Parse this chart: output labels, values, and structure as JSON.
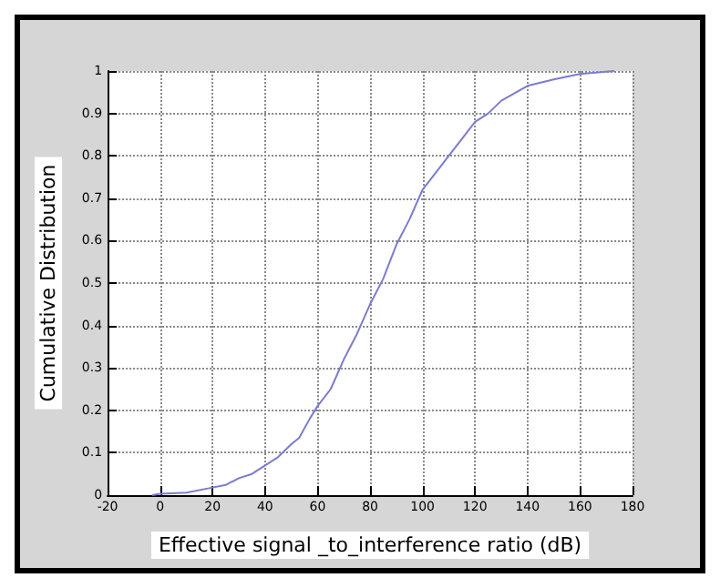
{
  "chart_data": {
    "type": "line",
    "xlabel": "Effective signal _to_interference ratio (dB)",
    "ylabel": "Cumulative Distribution",
    "x": [
      -3,
      0,
      10,
      20,
      25,
      30,
      35,
      40,
      45,
      50,
      53,
      57,
      60,
      65,
      70,
      75,
      80,
      85,
      90,
      95,
      100,
      105,
      110,
      115,
      120,
      125,
      130,
      140,
      150,
      160,
      173
    ],
    "series": [
      {
        "color": "#7b7bd0",
        "values": [
          0,
          0.003,
          0.006,
          0.018,
          0.024,
          0.04,
          0.05,
          0.07,
          0.09,
          0.12,
          0.135,
          0.18,
          0.21,
          0.25,
          0.32,
          0.38,
          0.45,
          0.51,
          0.59,
          0.65,
          0.72,
          0.76,
          0.8,
          0.84,
          0.88,
          0.9,
          0.93,
          0.965,
          0.98,
          0.993,
          1.0
        ]
      }
    ],
    "xlim": [
      -20,
      180
    ],
    "xticks": [
      -20,
      0,
      20,
      40,
      60,
      80,
      100,
      120,
      140,
      160,
      180
    ],
    "ylim": [
      0,
      1
    ],
    "yticks": [
      0,
      0.1,
      0.2,
      0.3,
      0.4,
      0.5,
      0.6,
      0.7,
      0.8,
      0.9,
      1
    ],
    "grid": true,
    "marker": "none",
    "line_style": "solid"
  }
}
